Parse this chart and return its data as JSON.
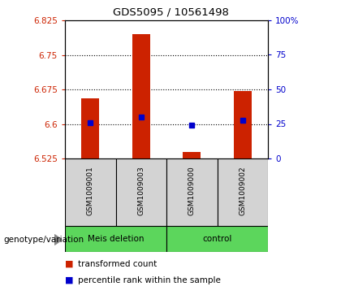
{
  "title": "GDS5095 / 10561498",
  "samples": [
    "GSM1009001",
    "GSM1009003",
    "GSM1009000",
    "GSM1009002"
  ],
  "red_bar_tops": [
    6.655,
    6.795,
    6.54,
    6.672
  ],
  "red_bar_bottom": 6.525,
  "blue_y": [
    6.603,
    6.615,
    6.598,
    6.608
  ],
  "ylim_left": [
    6.525,
    6.825
  ],
  "ylim_right": [
    0,
    100
  ],
  "yticks_left": [
    6.525,
    6.6,
    6.675,
    6.75,
    6.825
  ],
  "ytick_labels_left": [
    "6.525",
    "6.6",
    "6.675",
    "6.75",
    "6.825"
  ],
  "yticks_right": [
    0,
    25,
    50,
    75,
    100
  ],
  "ytick_labels_right": [
    "0",
    "25",
    "50",
    "75",
    "100%"
  ],
  "hlines": [
    6.6,
    6.675,
    6.75
  ],
  "bar_color": "#cc2200",
  "dot_color": "#0000cc",
  "bar_width": 0.35,
  "group_label": "genotype/variation",
  "legend_red": "transformed count",
  "legend_blue": "percentile rank within the sample",
  "sample_box_color": "#d3d3d3",
  "group1_label": "Meis deletion",
  "group2_label": "control",
  "group_box_color": "#5cd65c",
  "plot_bg": "#ffffff"
}
